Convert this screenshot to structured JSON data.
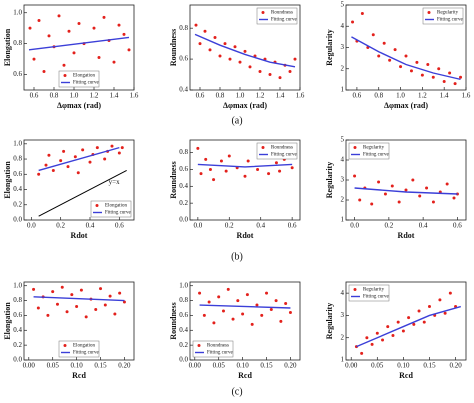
{
  "panel_labels": [
    "(a)",
    "(b)",
    "(c)"
  ],
  "chart_data": [
    {
      "type": "scatter",
      "x_label": "Δφmax (rad)",
      "y_label": "Elongation",
      "legend": "lower center",
      "xlim": [
        0.5,
        1.6
      ],
      "xticks": [
        0.6,
        0.8,
        {
          "value": 1,
          "label": "1.0"
        },
        1.2,
        1.4,
        1.6
      ],
      "ylim": [
        0.5,
        1.05
      ],
      "yticks": [
        0.6,
        0.8,
        {
          "value": 1,
          "label": "1.0"
        }
      ],
      "series": [
        {
          "name": "Elongation",
          "color": "#e3211c",
          "x": [
            0.56,
            0.6,
            0.65,
            0.7,
            0.75,
            0.8,
            0.85,
            0.9,
            0.95,
            1.0,
            1.05,
            1.1,
            1.15,
            1.2,
            1.25,
            1.3,
            1.35,
            1.4,
            1.45,
            1.5,
            1.55
          ],
          "values": [
            0.9,
            0.7,
            0.95,
            0.62,
            0.85,
            0.78,
            0.98,
            0.66,
            0.88,
            0.74,
            0.93,
            0.8,
            0.6,
            0.9,
            0.71,
            0.97,
            0.82,
            0.68,
            0.92,
            0.86,
            0.76
          ]
        },
        {
          "name": "Fitting curve",
          "color": "#3b3fd8",
          "x": [
            0.55,
            1.55
          ],
          "values": [
            0.76,
            0.84
          ]
        }
      ]
    },
    {
      "type": "scatter",
      "x_label": "Δφmax (rad)",
      "y_label": "Roundness",
      "legend": "upper right",
      "xlim": [
        0.5,
        1.6
      ],
      "xticks": [
        0.6,
        0.8,
        {
          "value": 1,
          "label": "1.0"
        },
        1.2,
        1.4,
        1.6
      ],
      "ylim": [
        0.4,
        0.95
      ],
      "yticks": [
        0.4,
        0.6,
        0.8
      ],
      "series": [
        {
          "name": "Roundness",
          "color": "#e3211c",
          "x": [
            0.56,
            0.6,
            0.65,
            0.7,
            0.75,
            0.8,
            0.85,
            0.9,
            0.95,
            1.0,
            1.05,
            1.1,
            1.15,
            1.2,
            1.25,
            1.3,
            1.35,
            1.4,
            1.45,
            1.5,
            1.55
          ],
          "values": [
            0.82,
            0.7,
            0.78,
            0.66,
            0.74,
            0.62,
            0.7,
            0.6,
            0.68,
            0.58,
            0.65,
            0.55,
            0.62,
            0.52,
            0.6,
            0.5,
            0.58,
            0.48,
            0.56,
            0.52,
            0.6
          ]
        },
        {
          "name": "Fitting curve",
          "color": "#3b3fd8",
          "x": [
            0.55,
            0.8,
            1.05,
            1.3,
            1.55
          ],
          "values": [
            0.76,
            0.69,
            0.63,
            0.58,
            0.55
          ]
        }
      ]
    },
    {
      "type": "scatter",
      "x_label": "Δφmax (rad)",
      "y_label": "Regularity",
      "legend": "upper right",
      "xlim": [
        0.5,
        1.6
      ],
      "xticks": [
        0.6,
        0.8,
        {
          "value": 1,
          "label": "1.0"
        },
        1.2,
        1.4,
        1.6
      ],
      "ylim": [
        1,
        5
      ],
      "yticks": [
        1,
        2,
        3,
        4,
        5
      ],
      "series": [
        {
          "name": "Regularity",
          "color": "#e3211c",
          "x": [
            0.56,
            0.6,
            0.65,
            0.7,
            0.75,
            0.8,
            0.85,
            0.9,
            0.95,
            1.0,
            1.05,
            1.1,
            1.15,
            1.2,
            1.25,
            1.3,
            1.35,
            1.4,
            1.45,
            1.5,
            1.55
          ],
          "values": [
            4.2,
            3.3,
            4.6,
            3.0,
            3.6,
            2.6,
            3.2,
            2.4,
            2.9,
            2.1,
            2.6,
            1.9,
            2.3,
            1.7,
            2.2,
            1.6,
            2.0,
            1.4,
            1.8,
            1.3,
            1.6
          ]
        },
        {
          "name": "Fitting curve",
          "color": "#3b3fd8",
          "x": [
            0.55,
            0.8,
            1.05,
            1.3,
            1.55
          ],
          "values": [
            3.5,
            2.8,
            2.2,
            1.8,
            1.5
          ]
        }
      ]
    },
    {
      "type": "scatter",
      "x_label": "Rdot",
      "y_label": "Elongation",
      "legend": "lower right",
      "xlim": [
        -0.05,
        0.7
      ],
      "xticks": [
        {
          "value": 0,
          "label": "0.0"
        },
        0.2,
        0.4,
        0.6
      ],
      "ylim": [
        0,
        1.05
      ],
      "yticks": [
        {
          "value": 0,
          "label": "0.0"
        },
        0.2,
        0.4,
        0.6,
        0.8,
        {
          "value": 1,
          "label": "1.0"
        }
      ],
      "reference_line": {
        "label": "y=x",
        "x": [
          0.05,
          0.65
        ],
        "values": [
          0.05,
          0.65
        ]
      },
      "series": [
        {
          "name": "Elongation",
          "color": "#e3211c",
          "x": [
            0.05,
            0.1,
            0.12,
            0.15,
            0.2,
            0.22,
            0.25,
            0.3,
            0.32,
            0.35,
            0.4,
            0.42,
            0.45,
            0.5,
            0.52,
            0.55,
            0.6,
            0.62
          ],
          "values": [
            0.6,
            0.72,
            0.85,
            0.65,
            0.78,
            0.9,
            0.7,
            0.83,
            0.62,
            0.92,
            0.76,
            0.86,
            0.95,
            0.8,
            0.9,
            0.97,
            0.88,
            0.95
          ]
        },
        {
          "name": "Fitting curve",
          "color": "#3b3fd8",
          "x": [
            0.05,
            0.6
          ],
          "values": [
            0.65,
            0.95
          ]
        }
      ]
    },
    {
      "type": "scatter",
      "x_label": "Rdot",
      "y_label": "Roundness",
      "legend": "upper right",
      "xlim": [
        -0.05,
        0.65
      ],
      "xticks": [
        {
          "value": 0,
          "label": "0.0"
        },
        0.2,
        0.4,
        0.6
      ],
      "ylim": [
        0,
        0.95
      ],
      "yticks": [
        {
          "value": 0,
          "label": "0.0"
        },
        0.2,
        0.4,
        0.6,
        0.8
      ],
      "series": [
        {
          "name": "Roundness",
          "color": "#e3211c",
          "x": [
            0,
            0.02,
            0.05,
            0.08,
            0.1,
            0.15,
            0.18,
            0.2,
            0.25,
            0.3,
            0.32,
            0.38,
            0.42,
            0.45,
            0.5,
            0.52,
            0.55,
            0.6
          ],
          "values": [
            0.85,
            0.55,
            0.72,
            0.6,
            0.48,
            0.7,
            0.58,
            0.76,
            0.62,
            0.52,
            0.7,
            0.6,
            0.74,
            0.55,
            0.68,
            0.58,
            0.72,
            0.62
          ]
        },
        {
          "name": "Fitting curve",
          "color": "#3b3fd8",
          "x": [
            0,
            0.3,
            0.6
          ],
          "values": [
            0.66,
            0.63,
            0.66
          ]
        }
      ]
    },
    {
      "type": "scatter",
      "x_label": "Rdot",
      "y_label": "Regularity",
      "legend": "upper left",
      "xlim": [
        -0.05,
        0.65
      ],
      "xticks": [
        {
          "value": 0,
          "label": "0.0"
        },
        0.2,
        0.4,
        0.6
      ],
      "ylim": [
        1,
        5
      ],
      "yticks": [
        1,
        2,
        3,
        4,
        5
      ],
      "series": [
        {
          "name": "Regularity",
          "color": "#e3211c",
          "x": [
            0,
            0.03,
            0.06,
            0.1,
            0.14,
            0.18,
            0.22,
            0.26,
            0.3,
            0.34,
            0.38,
            0.42,
            0.46,
            0.5,
            0.54,
            0.58,
            0.6
          ],
          "values": [
            3.2,
            2.0,
            2.6,
            1.8,
            2.9,
            2.3,
            2.7,
            1.9,
            2.5,
            3.0,
            2.2,
            2.6,
            1.9,
            2.4,
            2.8,
            2.1,
            2.3
          ]
        },
        {
          "name": "Fitting curve",
          "color": "#3b3fd8",
          "x": [
            0,
            0.3,
            0.6
          ],
          "values": [
            2.6,
            2.4,
            2.3
          ]
        }
      ]
    },
    {
      "type": "scatter",
      "x_label": "Rcd",
      "y_label": "Elongation",
      "legend": "lower center",
      "xlim": [
        -0.01,
        0.22
      ],
      "xticks": [
        {
          "value": 0,
          "label": "0.00"
        },
        0.05,
        {
          "value": 0.1,
          "label": "0.10"
        },
        0.15,
        {
          "value": 0.2,
          "label": "0.20"
        }
      ],
      "ylim": [
        0,
        1.05
      ],
      "yticks": [
        {
          "value": 0,
          "label": "0.0"
        },
        0.2,
        0.4,
        0.6,
        0.8,
        {
          "value": 1,
          "label": "1.0"
        }
      ],
      "series": [
        {
          "name": "Elongation",
          "color": "#e3211c",
          "x": [
            0.01,
            0.02,
            0.03,
            0.04,
            0.05,
            0.06,
            0.07,
            0.08,
            0.09,
            0.1,
            0.11,
            0.12,
            0.13,
            0.14,
            0.15,
            0.16,
            0.17,
            0.18,
            0.19,
            0.2
          ],
          "values": [
            0.95,
            0.7,
            0.85,
            0.6,
            0.92,
            0.75,
            0.98,
            0.65,
            0.88,
            0.72,
            0.94,
            0.58,
            0.82,
            0.68,
            0.96,
            0.74,
            0.86,
            0.62,
            0.9,
            0.78
          ]
        },
        {
          "name": "Fitting curve",
          "color": "#3b3fd8",
          "x": [
            0.01,
            0.2
          ],
          "values": [
            0.85,
            0.8
          ]
        }
      ]
    },
    {
      "type": "scatter",
      "x_label": "Rcd",
      "y_label": "Roundness",
      "legend": "lower left",
      "xlim": [
        -0.01,
        0.22
      ],
      "xticks": [
        {
          "value": 0,
          "label": "0.00"
        },
        0.05,
        {
          "value": 0.1,
          "label": "0.10"
        },
        0.15,
        {
          "value": 0.2,
          "label": "0.20"
        }
      ],
      "ylim": [
        0,
        1.05
      ],
      "yticks": [
        {
          "value": 0,
          "label": "0.0"
        },
        0.2,
        0.4,
        0.6,
        0.8,
        {
          "value": 1,
          "label": "1.0"
        }
      ],
      "series": [
        {
          "name": "Roundness",
          "color": "#e3211c",
          "x": [
            0.01,
            0.02,
            0.03,
            0.04,
            0.05,
            0.06,
            0.07,
            0.08,
            0.09,
            0.1,
            0.11,
            0.12,
            0.13,
            0.14,
            0.15,
            0.16,
            0.17,
            0.18,
            0.19,
            0.2
          ],
          "values": [
            0.9,
            0.6,
            0.78,
            0.5,
            0.85,
            0.66,
            0.95,
            0.55,
            0.8,
            0.62,
            0.88,
            0.48,
            0.74,
            0.6,
            0.9,
            0.68,
            0.8,
            0.52,
            0.76,
            0.64
          ]
        },
        {
          "name": "Fitting curve",
          "color": "#3b3fd8",
          "x": [
            0.01,
            0.2
          ],
          "values": [
            0.74,
            0.7
          ]
        }
      ]
    },
    {
      "type": "scatter",
      "x_label": "Rcd",
      "y_label": "Regularity",
      "legend": "upper left",
      "xlim": [
        -0.01,
        0.22
      ],
      "xticks": [
        {
          "value": 0,
          "label": "0.00"
        },
        0.05,
        {
          "value": 0.1,
          "label": "0.10"
        },
        0.15,
        {
          "value": 0.2,
          "label": "0.20"
        }
      ],
      "ylim": [
        1,
        4.5
      ],
      "yticks": [
        1,
        2,
        3,
        4
      ],
      "series": [
        {
          "name": "Regularity",
          "color": "#e3211c",
          "x": [
            0.01,
            0.02,
            0.03,
            0.04,
            0.05,
            0.06,
            0.07,
            0.08,
            0.09,
            0.1,
            0.11,
            0.12,
            0.13,
            0.14,
            0.15,
            0.16,
            0.17,
            0.18,
            0.19,
            0.2
          ],
          "values": [
            1.6,
            1.3,
            2.0,
            1.7,
            2.2,
            1.9,
            2.5,
            2.1,
            2.7,
            2.3,
            2.9,
            2.6,
            3.2,
            2.7,
            3.4,
            3.0,
            3.7,
            3.1,
            4.0,
            3.4
          ]
        },
        {
          "name": "Fitting curve",
          "color": "#3b3fd8",
          "x": [
            0.01,
            0.05,
            0.1,
            0.15,
            0.21
          ],
          "values": [
            1.6,
            2.0,
            2.5,
            3.0,
            3.4
          ]
        }
      ]
    }
  ]
}
